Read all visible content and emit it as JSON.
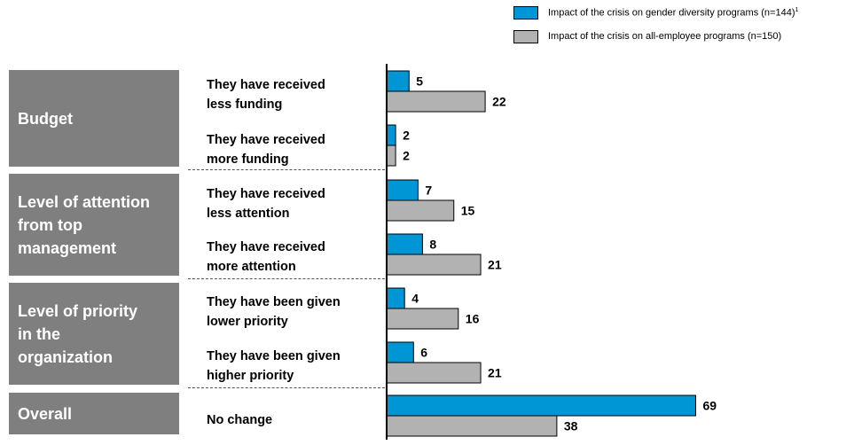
{
  "chart_data": {
    "type": "bar",
    "orientation": "horizontal",
    "series": [
      {
        "name": "Impact of the crisis on gender diversity programs (n=144)",
        "name_sup": "1",
        "color": "#0096d6"
      },
      {
        "name": "Impact of the crisis on all-employee programs (n=150)",
        "name_sup": "",
        "color": "#b2b2b2"
      }
    ],
    "groups": [
      {
        "label": "Budget",
        "rows": [
          {
            "label": "They have received\nless funding",
            "values": [
              5,
              22
            ]
          },
          {
            "label": "They have received\nmore funding",
            "values": [
              2,
              2
            ]
          }
        ]
      },
      {
        "label": "Level of attention\nfrom top\nmanagement",
        "rows": [
          {
            "label": "They have received\nless attention",
            "values": [
              7,
              15
            ]
          },
          {
            "label": "They have received\nmore attention",
            "values": [
              8,
              21
            ]
          }
        ]
      },
      {
        "label": "Level of priority\nin the\norganization",
        "rows": [
          {
            "label": "They have been given\nlower priority",
            "values": [
              4,
              16
            ]
          },
          {
            "label": "They have been given\nhigher priority",
            "values": [
              6,
              21
            ]
          }
        ]
      },
      {
        "label": "Overall",
        "rows": [
          {
            "label": "No change",
            "values": [
              69,
              38
            ]
          }
        ]
      }
    ],
    "legend": "top-right",
    "grid": false
  }
}
